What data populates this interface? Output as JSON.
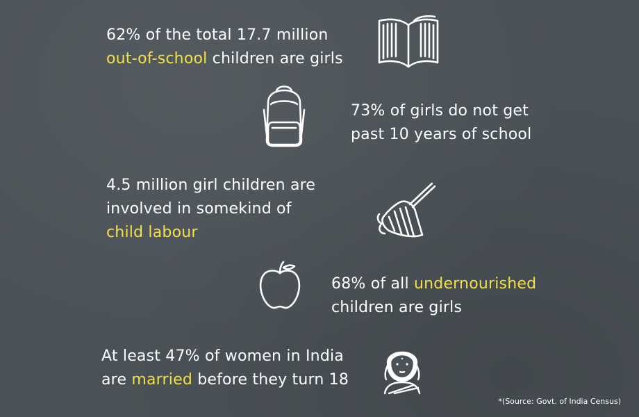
{
  "stats": [
    {
      "line1": "62% of the total 17.7 million",
      "line2_hl": "out-of-school",
      "line2_rest": " children are girls",
      "icon": "book-icon"
    },
    {
      "line1": "73% of girls do not get",
      "line2": "past 10 years of school",
      "icon": "backpack-icon"
    },
    {
      "line1": "4.5 million girl children are",
      "line2": "involved in somekind of",
      "line3_hl": "child labour",
      "icon": "broom-icon"
    },
    {
      "line1_pre": "68% of all ",
      "line1_hl": "undernourished",
      "line2": "children are girls",
      "icon": "apple-icon"
    },
    {
      "line1": "At least 47% of women in India",
      "line2_pre": "are ",
      "line2_hl": "married",
      "line2_post": " before they turn 18",
      "icon": "woman-face-icon"
    }
  ],
  "source": "*(Source: Govt. of India Census)",
  "colors": {
    "background": "#4b5257",
    "text": "#ffffff",
    "highlight": "#f1e04a"
  }
}
